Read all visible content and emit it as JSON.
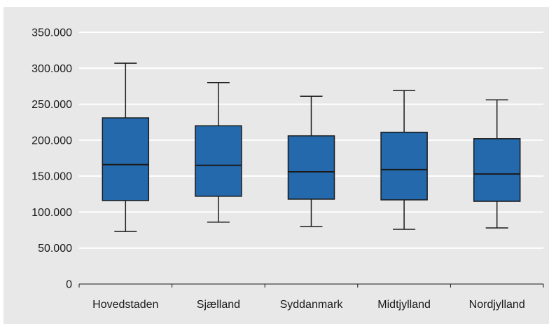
{
  "colors": {
    "panel_background": "#e8e8e8",
    "plot_background": "#e8e8e8",
    "gridline": "#ffffff",
    "box_fill": "#2469ab",
    "box_stroke": "#1a1a1a",
    "axis": "#1a1a1a"
  },
  "chart_data": {
    "type": "boxplot",
    "title": "",
    "xlabel": "",
    "ylabel": "",
    "ylim": [
      0,
      350000
    ],
    "yticks": [
      0,
      50000,
      100000,
      150000,
      200000,
      250000,
      300000,
      350000
    ],
    "ytick_labels": [
      "0",
      "50.000",
      "100.000",
      "150.000",
      "200.000",
      "250.000",
      "300.000",
      "350.000"
    ],
    "grid": true,
    "legend": "none",
    "categories": [
      "Hovedstaden",
      "Sjælland",
      "Syddanmark",
      "Midtjylland",
      "Nordjylland"
    ],
    "boxes": [
      {
        "category": "Hovedstaden",
        "whisker_low": 73000,
        "q1": 116000,
        "median": 166000,
        "q3": 231000,
        "whisker_high": 307000
      },
      {
        "category": "Sjælland",
        "whisker_low": 86000,
        "q1": 122000,
        "median": 165000,
        "q3": 220000,
        "whisker_high": 280000
      },
      {
        "category": "Syddanmark",
        "whisker_low": 80000,
        "q1": 118000,
        "median": 156000,
        "q3": 206000,
        "whisker_high": 261000
      },
      {
        "category": "Midtjylland",
        "whisker_low": 76000,
        "q1": 117000,
        "median": 159000,
        "q3": 211000,
        "whisker_high": 269000
      },
      {
        "category": "Nordjylland",
        "whisker_low": 78000,
        "q1": 115000,
        "median": 153000,
        "q3": 202000,
        "whisker_high": 256000
      }
    ]
  }
}
